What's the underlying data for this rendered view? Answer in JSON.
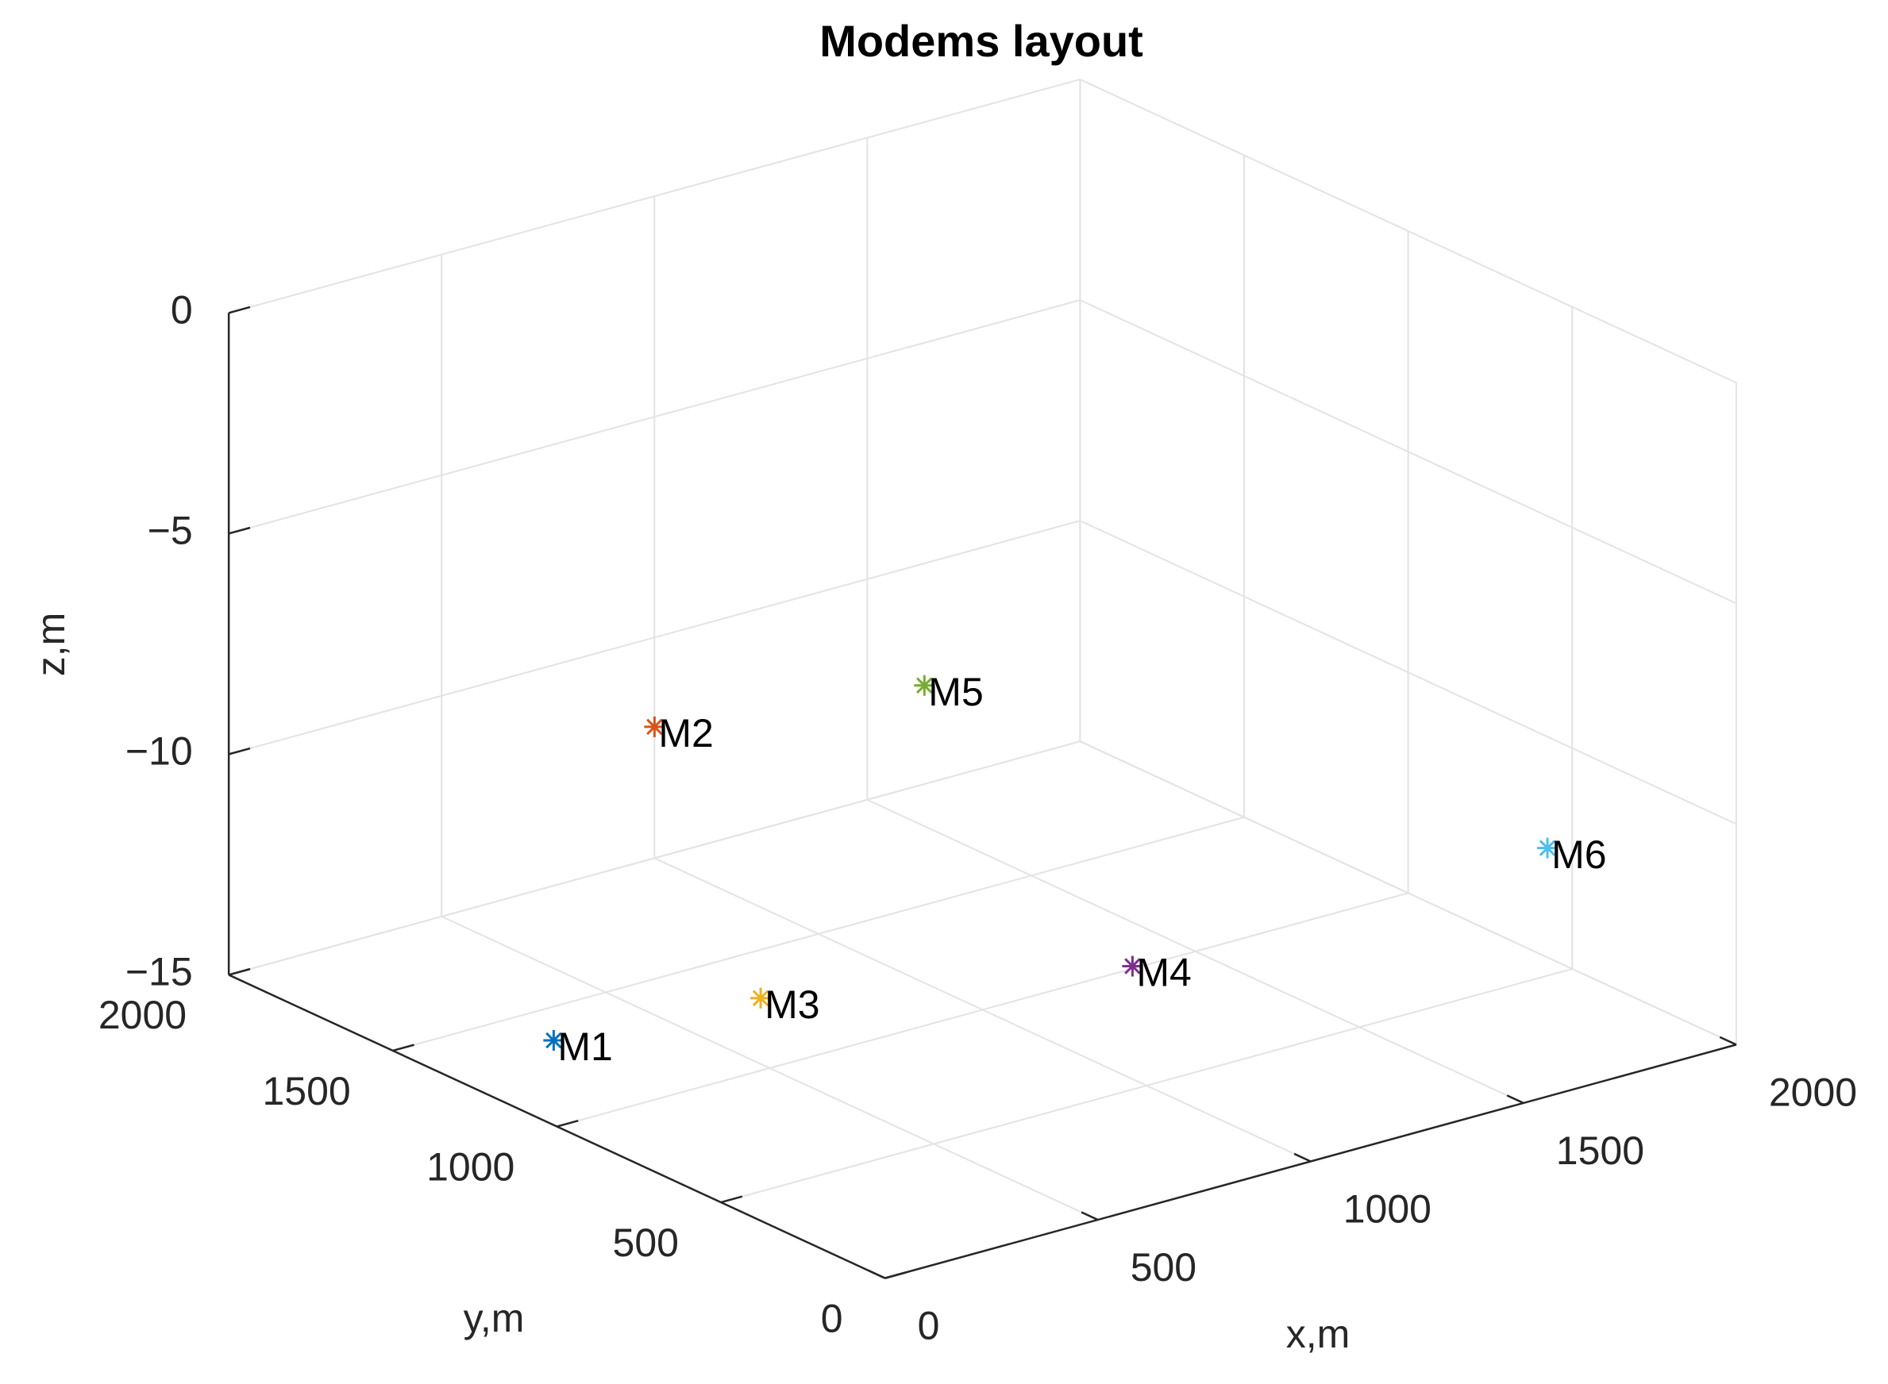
{
  "chart_data": {
    "type": "scatter3d",
    "title": "Modems layout",
    "x_label": "x,m",
    "y_label": "y,m",
    "z_label": "z,m",
    "xlim": [
      0,
      2000
    ],
    "ylim": [
      0,
      2000
    ],
    "zlim": [
      -15,
      0
    ],
    "xticks": [
      0,
      500,
      1000,
      1500,
      2000
    ],
    "yticks": [
      0,
      500,
      1000,
      1500,
      2000
    ],
    "zticks": [
      {
        "value": -15,
        "label": "−15"
      },
      {
        "value": -10,
        "label": "−10"
      },
      {
        "value": -5,
        "label": "−5"
      },
      0
    ],
    "grid": true,
    "marker": "*",
    "series": [
      {
        "name": "M1",
        "color": "#0072BD",
        "x": [
          270
        ],
        "y": [
          1360
        ],
        "z": [
          -15
        ]
      },
      {
        "name": "M2",
        "color": "#D95319",
        "x": [
          715
        ],
        "y": [
          1630
        ],
        "z": [
          -10
        ]
      },
      {
        "name": "M3",
        "color": "#EDB120",
        "x": [
          710
        ],
        "y": [
          1300
        ],
        "z": [
          -15
        ]
      },
      {
        "name": "M4",
        "color": "#7E2F8E",
        "x": [
          1360
        ],
        "y": [
          1010
        ],
        "z": [
          -15
        ]
      },
      {
        "name": "M5",
        "color": "#77AC30",
        "x": [
          1245
        ],
        "y": [
          1495
        ],
        "z": [
          -10
        ]
      },
      {
        "name": "M6",
        "color": "#4DBEEE",
        "x": [
          1645
        ],
        "y": [
          115
        ],
        "z": [
          -10
        ]
      }
    ]
  }
}
